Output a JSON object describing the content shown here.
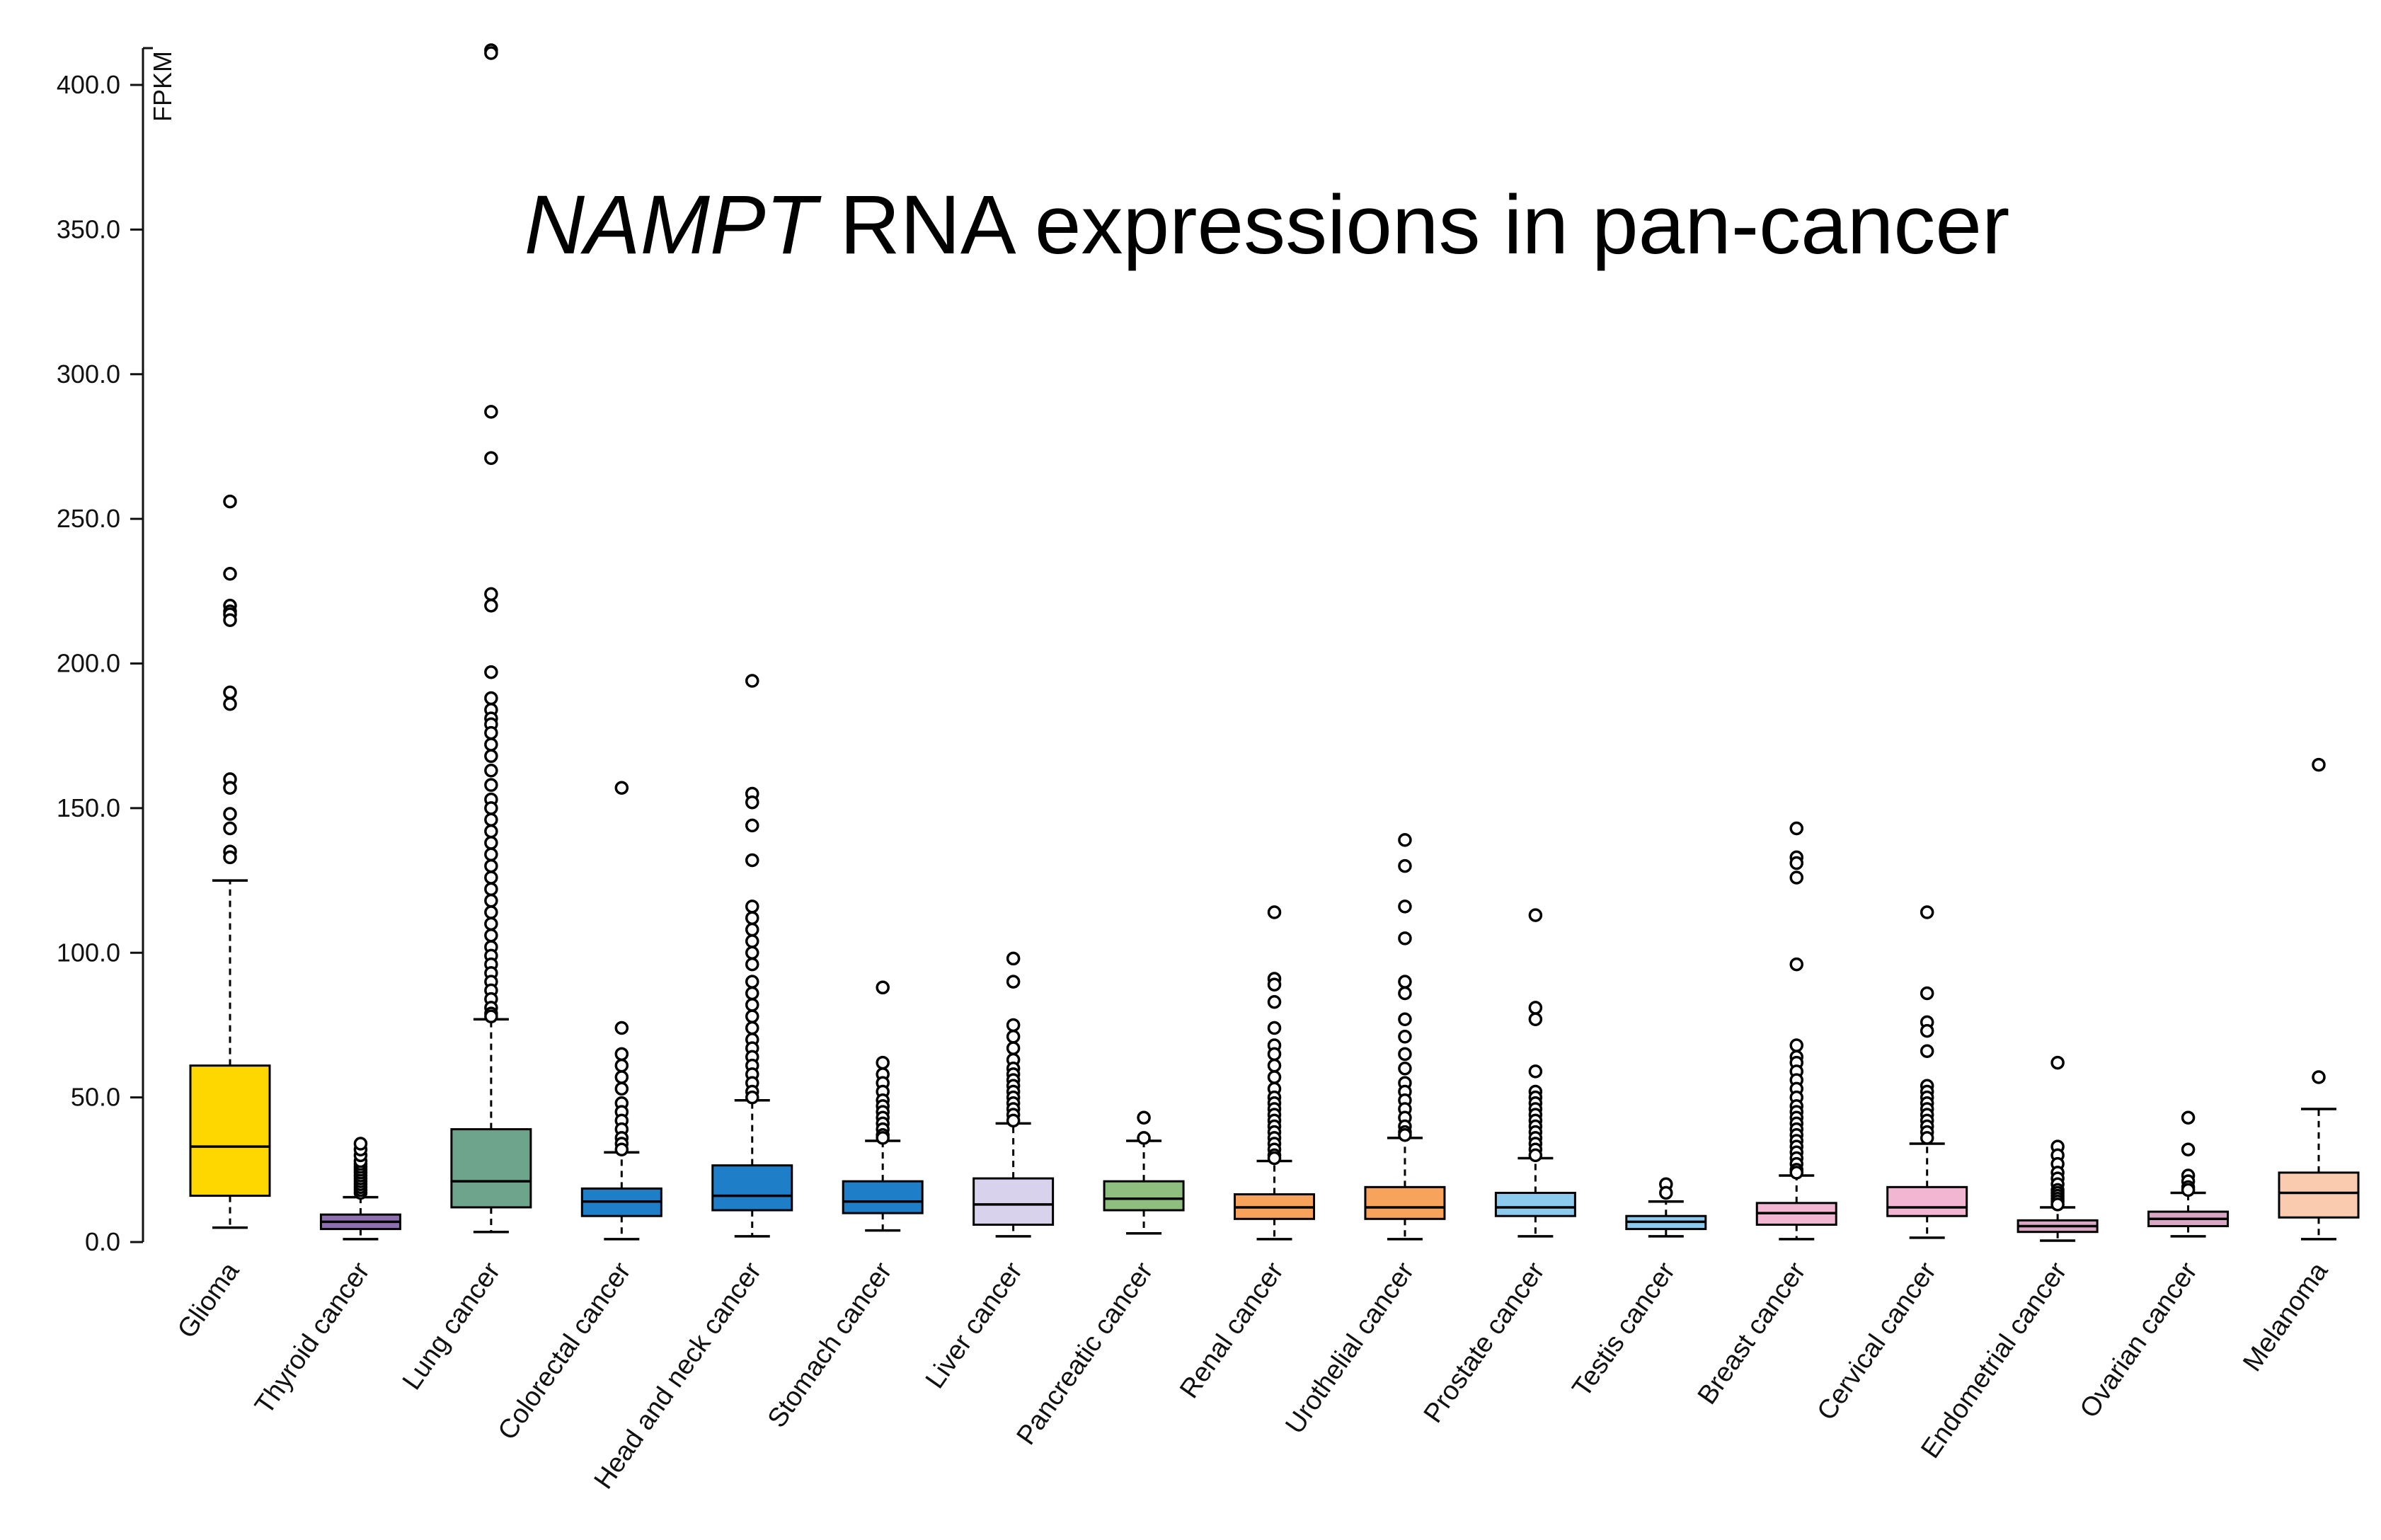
{
  "chart_data": {
    "type": "box",
    "title": {
      "gene": "NAMPT",
      "rest": " RNA expressions in pan-cancer"
    },
    "xlabel": "",
    "ylabel": "FPKM",
    "ylim": [
      0,
      412
    ],
    "yticks": [
      0,
      50,
      100,
      150,
      200,
      250,
      300,
      350,
      400
    ],
    "ytick_labels": [
      "0.0",
      "50.0",
      "100.0",
      "150.0",
      "200.0",
      "250.0",
      "300.0",
      "350.0",
      "400.0"
    ],
    "categories": [
      "Glioma",
      "Thyroid cancer",
      "Lung cancer",
      "Colorectal cancer",
      "Head and neck cancer",
      "Stomach cancer",
      "Liver cancer",
      "Pancreatic cancer",
      "Renal cancer",
      "Urothelial cancer",
      "Prostate cancer",
      "Testis cancer",
      "Breast cancer",
      "Cervical cancer",
      "Endometrial cancer",
      "Ovarian cancer",
      "Melanoma"
    ],
    "colors": [
      "#FFD700",
      "#8E6FB0",
      "#6FA48C",
      "#1E7EC8",
      "#1E7EC8",
      "#1E7EC8",
      "#D8D2EC",
      "#8FBF7F",
      "#F7A35C",
      "#F7A35C",
      "#8CCBEE",
      "#8CCBEE",
      "#F2B6D2",
      "#F2B6D2",
      "#D9A6C4",
      "#D9A6C4",
      "#FBCBB0"
    ],
    "boxes": [
      {
        "whislo": 5,
        "q1": 16,
        "med": 33,
        "q3": 61,
        "whishi": 125,
        "fliers": [
          256,
          231,
          220,
          218,
          217,
          215,
          190,
          186,
          160,
          157,
          148,
          143,
          135,
          133
        ]
      },
      {
        "whislo": 1,
        "q1": 4.5,
        "med": 7,
        "q3": 9.5,
        "whishi": 15.5,
        "fliers": [
          17,
          18,
          19,
          20,
          21,
          22,
          23,
          24,
          25,
          26,
          27,
          28,
          30,
          32,
          34
        ]
      },
      {
        "whislo": 3.5,
        "q1": 12,
        "med": 21,
        "q3": 39,
        "whishi": 77,
        "fliers": [
          412,
          411,
          287,
          271,
          224,
          220,
          197,
          188,
          184,
          181,
          179,
          176,
          172,
          168,
          163,
          158,
          153,
          150,
          146,
          142,
          138,
          134,
          130,
          126,
          122,
          118,
          114,
          110,
          106,
          102,
          99,
          96,
          93,
          90,
          87,
          84,
          81,
          79,
          78
        ]
      },
      {
        "whislo": 1,
        "q1": 9,
        "med": 14,
        "q3": 18.5,
        "whishi": 31,
        "fliers": [
          157,
          74,
          65,
          61,
          57,
          53,
          48,
          45,
          42,
          39,
          36,
          34,
          32
        ]
      },
      {
        "whislo": 2,
        "q1": 11,
        "med": 16,
        "q3": 26.5,
        "whishi": 49,
        "fliers": [
          194,
          155,
          152,
          144,
          132,
          116,
          112,
          108,
          104,
          100,
          96,
          90,
          86,
          82,
          78,
          74,
          70,
          67,
          64,
          61,
          58,
          55,
          52,
          50
        ]
      },
      {
        "whislo": 4,
        "q1": 10,
        "med": 14,
        "q3": 21,
        "whishi": 35,
        "fliers": [
          88,
          62,
          58,
          55,
          52,
          49,
          47,
          45,
          43,
          41,
          39,
          37,
          36
        ]
      },
      {
        "whislo": 2,
        "q1": 6,
        "med": 13,
        "q3": 22,
        "whishi": 41,
        "fliers": [
          98,
          90,
          75,
          71,
          67,
          63,
          60,
          58,
          56,
          54,
          52,
          50,
          48,
          46,
          44,
          42
        ]
      },
      {
        "whislo": 3,
        "q1": 11,
        "med": 15,
        "q3": 21,
        "whishi": 35,
        "fliers": [
          43,
          36
        ]
      },
      {
        "whislo": 1,
        "q1": 8,
        "med": 12,
        "q3": 16.5,
        "whishi": 28,
        "fliers": [
          114,
          91,
          89,
          83,
          74,
          68,
          65,
          61,
          57,
          53,
          50,
          48,
          46,
          44,
          42,
          40,
          38,
          36,
          34,
          32,
          30,
          29
        ]
      },
      {
        "whislo": 1,
        "q1": 8,
        "med": 12,
        "q3": 19,
        "whishi": 36,
        "fliers": [
          139,
          130,
          116,
          105,
          90,
          86,
          77,
          71,
          65,
          60,
          55,
          52,
          49,
          46,
          43,
          40,
          38,
          37
        ]
      },
      {
        "whislo": 2,
        "q1": 9,
        "med": 12,
        "q3": 17,
        "whishi": 29,
        "fliers": [
          113,
          81,
          77,
          59,
          52,
          50,
          48,
          46,
          44,
          42,
          40,
          38,
          36,
          34,
          32,
          30
        ]
      },
      {
        "whislo": 2,
        "q1": 4.5,
        "med": 7,
        "q3": 9,
        "whishi": 14,
        "fliers": [
          20,
          17
        ]
      },
      {
        "whislo": 1,
        "q1": 6,
        "med": 10,
        "q3": 13.5,
        "whishi": 23,
        "fliers": [
          143,
          133,
          131,
          126,
          96,
          68,
          64,
          62,
          59,
          56,
          53,
          50,
          47,
          45,
          43,
          41,
          39,
          37,
          35,
          33,
          31,
          29,
          27,
          25,
          24
        ]
      },
      {
        "whislo": 1.5,
        "q1": 9,
        "med": 12,
        "q3": 19,
        "whishi": 34,
        "fliers": [
          114,
          86,
          76,
          73,
          66,
          54,
          52,
          50,
          48,
          46,
          44,
          42,
          40,
          38,
          36
        ]
      },
      {
        "whislo": 0.5,
        "q1": 3.5,
        "med": 5.5,
        "q3": 7.5,
        "whishi": 12,
        "fliers": [
          62,
          33,
          30,
          27,
          24,
          22,
          20,
          18,
          17,
          16,
          15,
          14,
          13
        ]
      },
      {
        "whislo": 2,
        "q1": 5.5,
        "med": 8,
        "q3": 10.5,
        "whishi": 17,
        "fliers": [
          43,
          32,
          23,
          21,
          19,
          18
        ]
      },
      {
        "whislo": 1,
        "q1": 8.5,
        "med": 17,
        "q3": 24,
        "whishi": 46,
        "fliers": [
          165,
          57
        ]
      }
    ],
    "grid": false,
    "legend": "none"
  }
}
